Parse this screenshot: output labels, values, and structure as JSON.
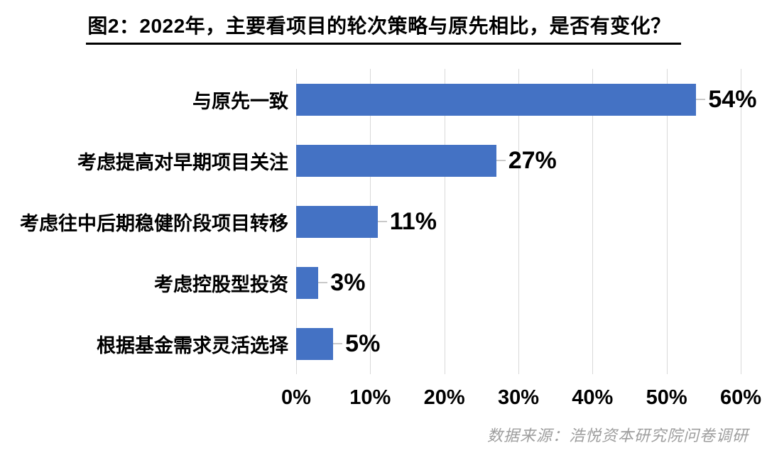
{
  "chart_data": {
    "type": "bar",
    "orientation": "horizontal",
    "title": "图2：2022年，主要看项目的轮次策略与原先相比，是否有变化？",
    "categories": [
      "与原先一致",
      "考虑提高对早期项目关注",
      "考虑往中后期稳健阶段项目转移",
      "考虑控股型投资",
      "根据基金需求灵活选择"
    ],
    "values": [
      54,
      27,
      11,
      3,
      5
    ],
    "value_labels": [
      "54%",
      "27%",
      "11%",
      "3%",
      "5%"
    ],
    "xlim": [
      0,
      60
    ],
    "x_ticks": [
      "0%",
      "10%",
      "20%",
      "30%",
      "40%",
      "50%",
      "60%"
    ],
    "xlabel": "",
    "ylabel": "",
    "grid": true,
    "legend": "none",
    "source_note": "数据来源：浩悦资本研究院问卷调研",
    "colors": {
      "bar": "#4472C4",
      "gridline": "#D9D9D9",
      "leader_line": "#C9C9C9",
      "text": "#000000",
      "source_note": "#9E9E9E"
    }
  }
}
